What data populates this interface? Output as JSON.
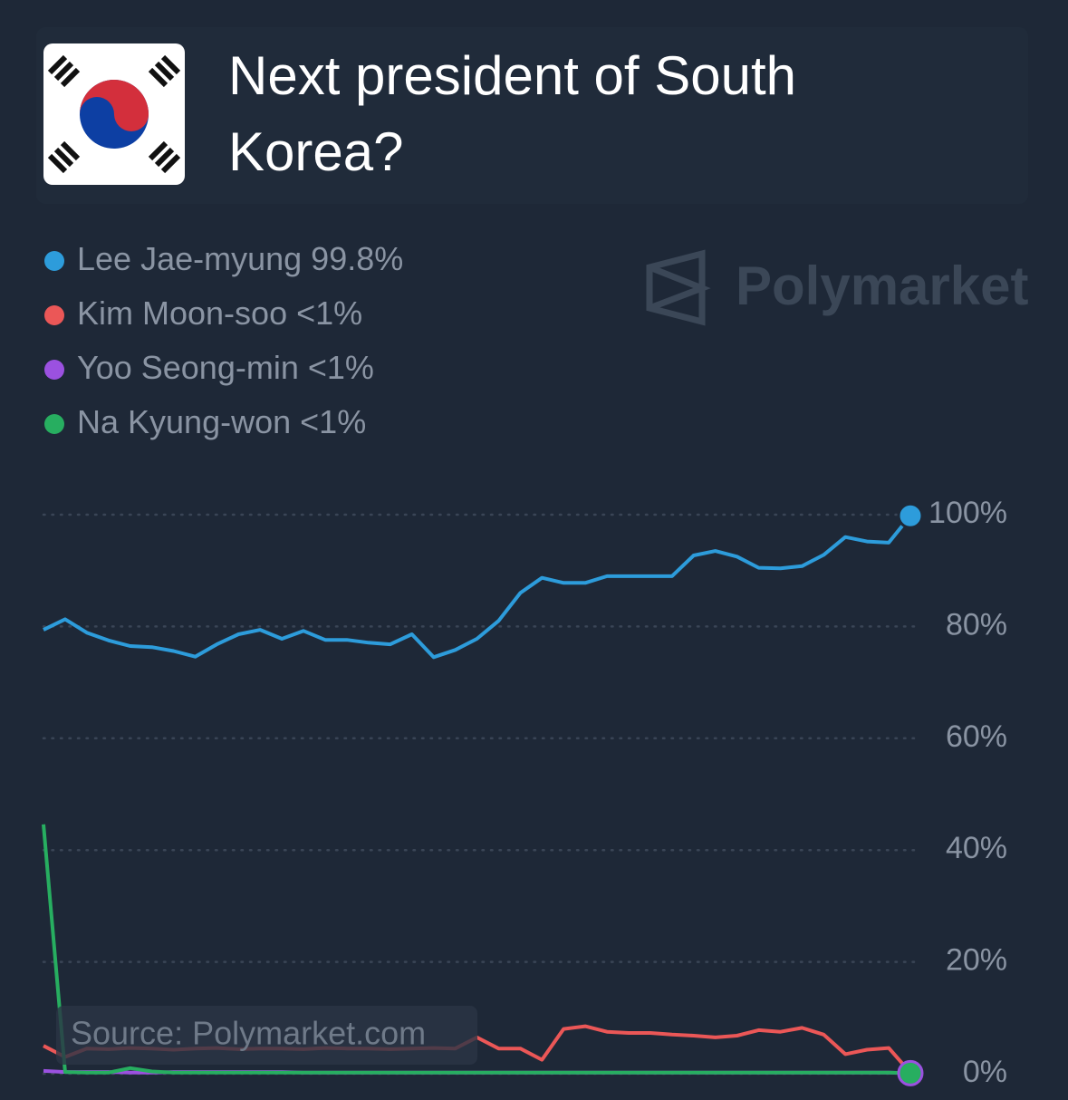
{
  "chart_data": {
    "type": "line",
    "title": "Next president of South Korea?",
    "watermark": "Polymarket",
    "source": "Source: Polymarket.com",
    "ylim": [
      0,
      100
    ],
    "yticks": [
      {
        "value": 0,
        "label": "0%"
      },
      {
        "value": 20,
        "label": "20%"
      },
      {
        "value": 40,
        "label": "40%"
      },
      {
        "value": 60,
        "label": "60%"
      },
      {
        "value": 80,
        "label": "80%"
      },
      {
        "value": 100,
        "label": "100%"
      }
    ],
    "grid": true,
    "series": [
      {
        "name": "Lee Jae-myung",
        "current": "99.8%",
        "color": "#2d9cdb",
        "values": [
          79.4,
          81.3,
          78.9,
          77.5,
          76.5,
          76.3,
          75.6,
          74.6,
          76.8,
          78.6,
          79.4,
          77.8,
          79.2,
          77.6,
          77.6,
          77.1,
          76.8,
          78.6,
          74.5,
          75.8,
          77.8,
          81,
          86,
          88.7,
          87.8,
          87.8,
          89,
          89,
          89,
          89,
          92.7,
          93.5,
          92.5,
          90.5,
          90.4,
          90.8,
          92.8,
          96,
          95.2,
          95,
          99.8
        ]
      },
      {
        "name": "Kim Moon-soo",
        "current": "<1%",
        "color": "#eb5757",
        "values": [
          5,
          3,
          4.5,
          4.4,
          4.6,
          4.5,
          4.3,
          4.5,
          4.6,
          4.4,
          4.5,
          4.5,
          4.4,
          4.6,
          4.5,
          4.5,
          4.4,
          4.5,
          4.6,
          4.5,
          6.5,
          4.5,
          4.5,
          2.5,
          8,
          8.5,
          7.5,
          7.3,
          7.3,
          7,
          6.8,
          6.5,
          6.8,
          7.8,
          7.5,
          8.2,
          7,
          3.5,
          4.3,
          4.6,
          0.2
        ]
      },
      {
        "name": "Yoo Seong-min",
        "current": "<1%",
        "color": "#9b51e0",
        "values": [
          0.5,
          0.3,
          0.3,
          0.3,
          0.2,
          0.2,
          0.3,
          0.3,
          0.3,
          0.3,
          0.3,
          0.3,
          0.2,
          0.2,
          0.2,
          0.2,
          0.2,
          0.2,
          0.2,
          0.2,
          0.2,
          0.2,
          0.2,
          0.2,
          0.2,
          0.2,
          0.2,
          0.2,
          0.2,
          0.2,
          0.2,
          0.2,
          0.2,
          0.2,
          0.2,
          0.2,
          0.2,
          0.2,
          0.2,
          0.2,
          0.1
        ]
      },
      {
        "name": "Na Kyung-won",
        "current": "<1%",
        "color": "#27ae60",
        "values": [
          44.6,
          0.3,
          0.2,
          0.2,
          1,
          0.4,
          0.2,
          0.2,
          0.2,
          0.2,
          0.2,
          0.2,
          0.2,
          0.2,
          0.2,
          0.2,
          0.2,
          0.2,
          0.2,
          0.2,
          0.2,
          0.2,
          0.2,
          0.2,
          0.2,
          0.2,
          0.2,
          0.2,
          0.2,
          0.2,
          0.2,
          0.2,
          0.2,
          0.2,
          0.2,
          0.2,
          0.2,
          0.2,
          0.2,
          0.2,
          0.1
        ]
      }
    ]
  }
}
